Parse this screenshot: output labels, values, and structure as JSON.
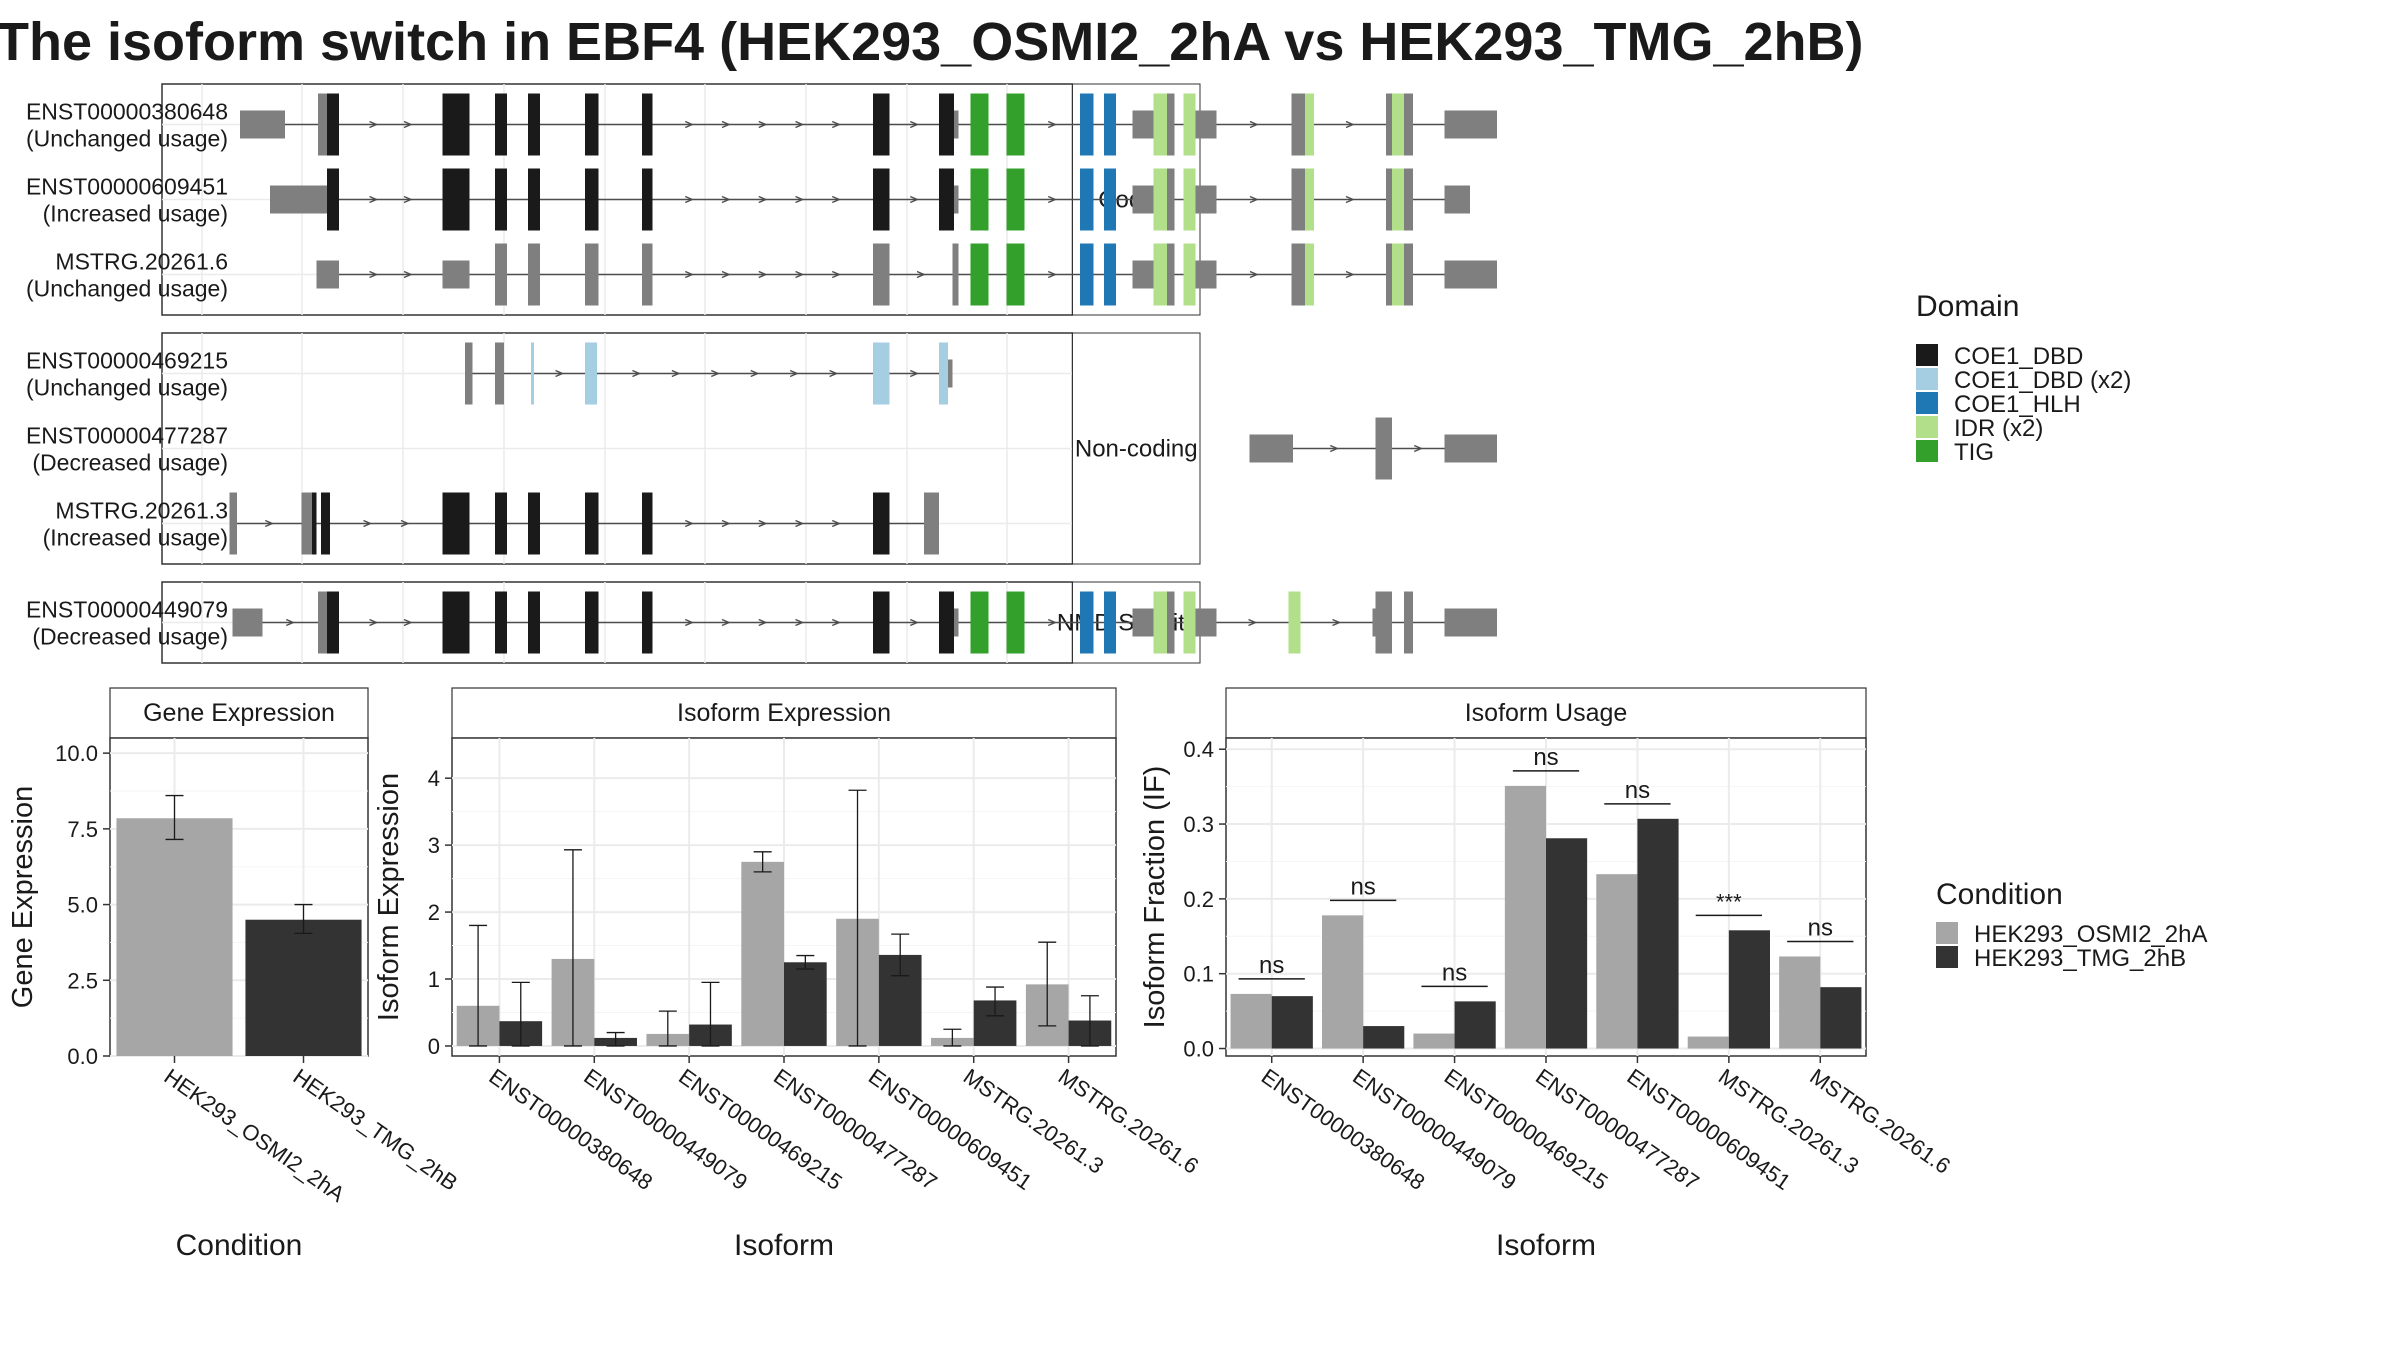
{
  "title": "The isoform switch in EBF4 (HEK293_OSMI2_2hA vs HEK293_TMG_2hB)",
  "colors": {
    "cond_a": "#a6a6a6",
    "cond_b": "#333333",
    "intron": "#4d4d4d",
    "exon": "#7f7f7f",
    "grid": "#ebebeb",
    "panel_border": "#333333",
    "strip_bg": "#ffffff",
    "domains": {
      "COE1_DBD": "#1a1a1a",
      "COE1_DBD (x2)": "#a6cee3",
      "COE1_HLH": "#1f78b4",
      "IDR (x2)": "#b2df8a",
      "TIG": "#33a02c"
    }
  },
  "structure": {
    "groups": [
      {
        "label": "Coding",
        "isoforms": [
          {
            "id": "ENST00000380648",
            "usage": "(Unchanged usage)",
            "utr5": [
              [
                60,
                90
              ]
            ],
            "domains": [
              [
                118,
                126,
                "COE1_DBD"
              ],
              [
                195,
                213,
                "COE1_DBD"
              ],
              [
                230,
                238,
                "COE1_DBD"
              ],
              [
                252,
                260,
                "COE1_DBD"
              ],
              [
                290,
                299,
                "COE1_DBD"
              ],
              [
                328,
                335,
                "COE1_DBD"
              ],
              [
                482,
                493,
                "COE1_DBD"
              ],
              [
                526,
                536,
                "COE1_DBD"
              ],
              [
                547,
                559,
                "TIG"
              ],
              [
                571,
                583,
                "TIG"
              ],
              [
                620,
                629,
                "COE1_HLH"
              ],
              [
                636,
                644,
                "COE1_HLH"
              ],
              [
                669,
                678,
                "IDR (x2)"
              ],
              [
                689,
                697,
                "IDR (x2)"
              ],
              [
                770,
                776,
                "IDR (x2)"
              ],
              [
                828,
                836,
                "IDR (x2)"
              ]
            ],
            "exons": [
              [
                112,
                118
              ],
              [
                536,
                539
              ],
              [
                655,
                669
              ],
              [
                678,
                683
              ],
              [
                697,
                711
              ],
              [
                761,
                770
              ],
              [
                824,
                828
              ],
              [
                836,
                842
              ],
              [
                863,
                898
              ]
            ]
          },
          {
            "id": "ENST00000609451",
            "usage": "(Increased usage)",
            "utr5": [
              [
                80,
                94
              ]
            ],
            "domains": [
              [
                118,
                126,
                "COE1_DBD"
              ],
              [
                195,
                213,
                "COE1_DBD"
              ],
              [
                230,
                238,
                "COE1_DBD"
              ],
              [
                252,
                260,
                "COE1_DBD"
              ],
              [
                290,
                299,
                "COE1_DBD"
              ],
              [
                328,
                335,
                "COE1_DBD"
              ],
              [
                482,
                493,
                "COE1_DBD"
              ],
              [
                526,
                536,
                "COE1_DBD"
              ],
              [
                547,
                559,
                "TIG"
              ],
              [
                571,
                583,
                "TIG"
              ],
              [
                620,
                629,
                "COE1_HLH"
              ],
              [
                636,
                644,
                "COE1_HLH"
              ],
              [
                669,
                678,
                "IDR (x2)"
              ],
              [
                689,
                697,
                "IDR (x2)"
              ],
              [
                770,
                776,
                "IDR (x2)"
              ],
              [
                828,
                836,
                "IDR (x2)"
              ]
            ],
            "exons": [
              [
                94,
                118
              ],
              [
                536,
                539
              ],
              [
                655,
                669
              ],
              [
                678,
                683
              ],
              [
                697,
                711
              ],
              [
                761,
                770
              ],
              [
                824,
                828
              ],
              [
                836,
                842
              ],
              [
                863,
                880
              ]
            ]
          },
          {
            "id": "MSTRG.20261.6",
            "usage": "(Unchanged usage)",
            "utr5": [],
            "domains": [
              [
                547,
                559,
                "TIG"
              ],
              [
                571,
                583,
                "TIG"
              ],
              [
                620,
                629,
                "COE1_HLH"
              ],
              [
                636,
                644,
                "COE1_HLH"
              ],
              [
                669,
                678,
                "IDR (x2)"
              ],
              [
                689,
                697,
                "IDR (x2)"
              ],
              [
                770,
                776,
                "IDR (x2)"
              ],
              [
                828,
                836,
                "IDR (x2)"
              ]
            ],
            "exons": [
              [
                111,
                126
              ],
              [
                195,
                213
              ],
              [
                230,
                238
              ],
              [
                252,
                260
              ],
              [
                290,
                299
              ],
              [
                328,
                335
              ],
              [
                482,
                493
              ],
              [
                535,
                539
              ],
              [
                655,
                669
              ],
              [
                678,
                683
              ],
              [
                697,
                711
              ],
              [
                761,
                770
              ],
              [
                824,
                828
              ],
              [
                836,
                842
              ],
              [
                863,
                898
              ]
            ]
          }
        ]
      },
      {
        "label": "Non-coding",
        "isoforms": [
          {
            "id": "ENST00000469215",
            "usage": "(Unchanged usage)",
            "utr5": [],
            "domains": [
              [
                254,
                256,
                "COE1_DBD (x2)"
              ],
              [
                290,
                298,
                "COE1_DBD (x2)"
              ],
              [
                482,
                493,
                "COE1_DBD (x2)"
              ],
              [
                526,
                532,
                "COE1_DBD (x2)"
              ]
            ],
            "exons": [
              [
                210,
                215
              ],
              [
                230,
                236
              ],
              [
                532,
                535
              ]
            ]
          },
          {
            "id": "ENST00000477287",
            "usage": "(Decreased usage)",
            "utr5": [],
            "domains": [],
            "exons": [
              [
                733,
                762
              ],
              [
                817,
                828
              ],
              [
                863,
                898
              ]
            ]
          },
          {
            "id": "MSTRG.20261.3",
            "usage": "(Increased usage)",
            "utr5": [],
            "domains": [
              [
                108,
                111,
                "COE1_DBD"
              ],
              [
                114,
                120,
                "COE1_DBD"
              ],
              [
                195,
                213,
                "COE1_DBD"
              ],
              [
                230,
                238,
                "COE1_DBD"
              ],
              [
                252,
                260,
                "COE1_DBD"
              ],
              [
                290,
                299,
                "COE1_DBD"
              ],
              [
                328,
                335,
                "COE1_DBD"
              ],
              [
                482,
                493,
                "COE1_DBD"
              ]
            ],
            "exons": [
              [
                53,
                58
              ],
              [
                101,
                111
              ],
              [
                516,
                526
              ]
            ]
          }
        ]
      },
      {
        "label": "NMD Sensitive",
        "isoforms": [
          {
            "id": "ENST00000449079",
            "usage": "(Decreased usage)",
            "utr5": [
              [
                55,
                75
              ]
            ],
            "domains": [
              [
                118,
                126,
                "COE1_DBD"
              ],
              [
                195,
                213,
                "COE1_DBD"
              ],
              [
                230,
                238,
                "COE1_DBD"
              ],
              [
                252,
                260,
                "COE1_DBD"
              ],
              [
                290,
                299,
                "COE1_DBD"
              ],
              [
                328,
                335,
                "COE1_DBD"
              ],
              [
                482,
                493,
                "COE1_DBD"
              ],
              [
                526,
                536,
                "COE1_DBD"
              ],
              [
                547,
                559,
                "TIG"
              ],
              [
                571,
                583,
                "TIG"
              ],
              [
                620,
                629,
                "COE1_HLH"
              ],
              [
                636,
                644,
                "COE1_HLH"
              ],
              [
                669,
                678,
                "IDR (x2)"
              ],
              [
                689,
                697,
                "IDR (x2)"
              ],
              [
                759,
                767,
                "IDR (x2)"
              ]
            ],
            "exons": [
              [
                112,
                118
              ],
              [
                536,
                539
              ],
              [
                655,
                669
              ],
              [
                678,
                683
              ],
              [
                697,
                711
              ],
              [
                815,
                817
              ],
              [
                817,
                828
              ],
              [
                836,
                842
              ],
              [
                863,
                898
              ]
            ]
          }
        ]
      }
    ]
  },
  "legends": {
    "domain": {
      "title": "Domain",
      "items": [
        "COE1_DBD",
        "COE1_DBD (x2)",
        "COE1_HLH",
        "IDR (x2)",
        "TIG"
      ]
    },
    "condition": {
      "title": "Condition",
      "items": [
        "HEK293_OSMI2_2hA",
        "HEK293_TMG_2hB"
      ]
    }
  },
  "chart_data": [
    {
      "type": "bar",
      "title": "Gene Expression",
      "xlabel": "Condition",
      "ylabel": "Gene Expression",
      "categories": [
        "HEK293_OSMI2_2hA",
        "HEK293_TMG_2hB"
      ],
      "values": [
        7.85,
        4.5
      ],
      "error": [
        [
          7.15,
          8.6
        ],
        [
          4.05,
          5.0
        ]
      ],
      "ylim": [
        0,
        10.5
      ],
      "yticks": [
        "0.0",
        "2.5",
        "5.0",
        "7.5",
        "10.0"
      ],
      "ytick_values": [
        0,
        2.5,
        5,
        7.5,
        10
      ]
    },
    {
      "type": "bar",
      "title": "Isoform Expression",
      "xlabel": "Isoform",
      "ylabel": "Isoform Expression",
      "categories": [
        "ENST00000380648",
        "ENST00000449079",
        "ENST00000469215",
        "ENST00000477287",
        "ENST00000609451",
        "MSTRG.20261.3",
        "MSTRG.20261.6"
      ],
      "series": [
        {
          "name": "HEK293_OSMI2_2hA",
          "values": [
            0.6,
            1.3,
            0.18,
            2.75,
            1.9,
            0.12,
            0.92
          ],
          "error": [
            [
              0.0,
              1.8
            ],
            [
              0.0,
              2.93
            ],
            [
              0.0,
              0.52
            ],
            [
              2.6,
              2.9
            ],
            [
              0.0,
              3.82
            ],
            [
              0.0,
              0.25
            ],
            [
              0.3,
              1.55
            ]
          ]
        },
        {
          "name": "HEK293_TMG_2hB",
          "values": [
            0.37,
            0.12,
            0.32,
            1.25,
            1.36,
            0.68,
            0.38
          ],
          "error": [
            [
              0.0,
              0.95
            ],
            [
              0.0,
              0.2
            ],
            [
              0.0,
              0.95
            ],
            [
              1.15,
              1.35
            ],
            [
              1.05,
              1.67
            ],
            [
              0.45,
              0.88
            ],
            [
              0.0,
              0.75
            ]
          ]
        }
      ],
      "ylim": [
        -0.15,
        4.6
      ],
      "yticks": [
        "0",
        "1",
        "2",
        "3",
        "4"
      ],
      "ytick_values": [
        0,
        1,
        2,
        3,
        4
      ]
    },
    {
      "type": "bar",
      "title": "Isoform Usage",
      "xlabel": "Isoform",
      "ylabel": "Isoform Fraction (IF)",
      "categories": [
        "ENST00000380648",
        "ENST00000449079",
        "ENST00000469215",
        "ENST00000477287",
        "ENST00000609451",
        "MSTRG.20261.3",
        "MSTRG.20261.6"
      ],
      "series": [
        {
          "name": "HEK293_OSMI2_2hA",
          "values": [
            0.073,
            0.178,
            0.02,
            0.351,
            0.233,
            0.016,
            0.123
          ]
        },
        {
          "name": "HEK293_TMG_2hB",
          "values": [
            0.07,
            0.03,
            0.063,
            0.281,
            0.307,
            0.158,
            0.082
          ]
        }
      ],
      "significance": [
        "ns",
        "ns",
        "ns",
        "ns",
        "ns",
        "***",
        "ns"
      ],
      "sig_y": [
        0.093,
        0.198,
        0.083,
        0.371,
        0.327,
        0.178,
        0.143
      ],
      "ylim": [
        -0.01,
        0.415
      ],
      "yticks": [
        "0.0",
        "0.1",
        "0.2",
        "0.3",
        "0.4"
      ],
      "ytick_values": [
        0,
        0.1,
        0.2,
        0.3,
        0.4
      ]
    }
  ]
}
